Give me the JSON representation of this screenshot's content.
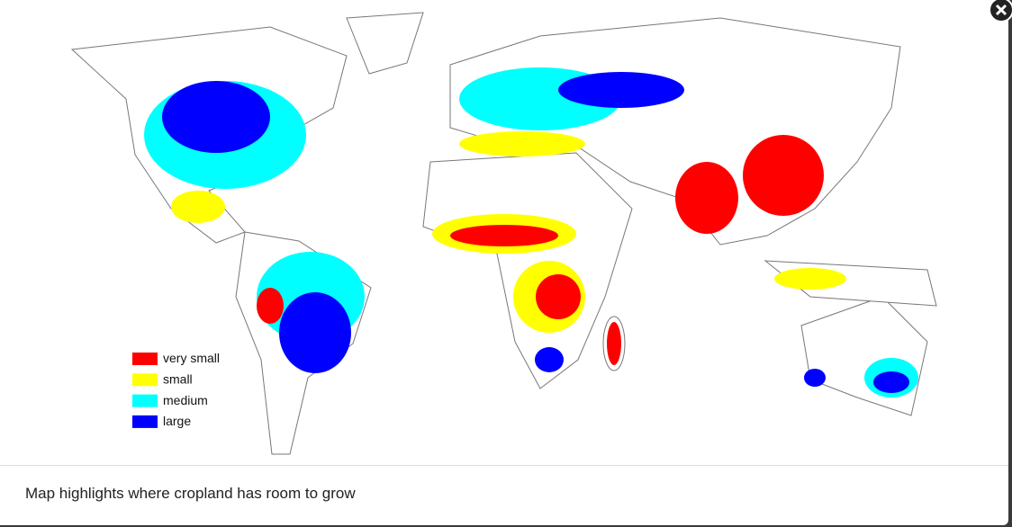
{
  "legend": {
    "items": [
      {
        "label": "very small",
        "color": "#ff0000"
      },
      {
        "label": "small",
        "color": "#ffff00"
      },
      {
        "label": "medium",
        "color": "#00ffff"
      },
      {
        "label": "large",
        "color": "#0000ff"
      }
    ]
  },
  "caption": "Map highlights where cropland has room to grow"
}
